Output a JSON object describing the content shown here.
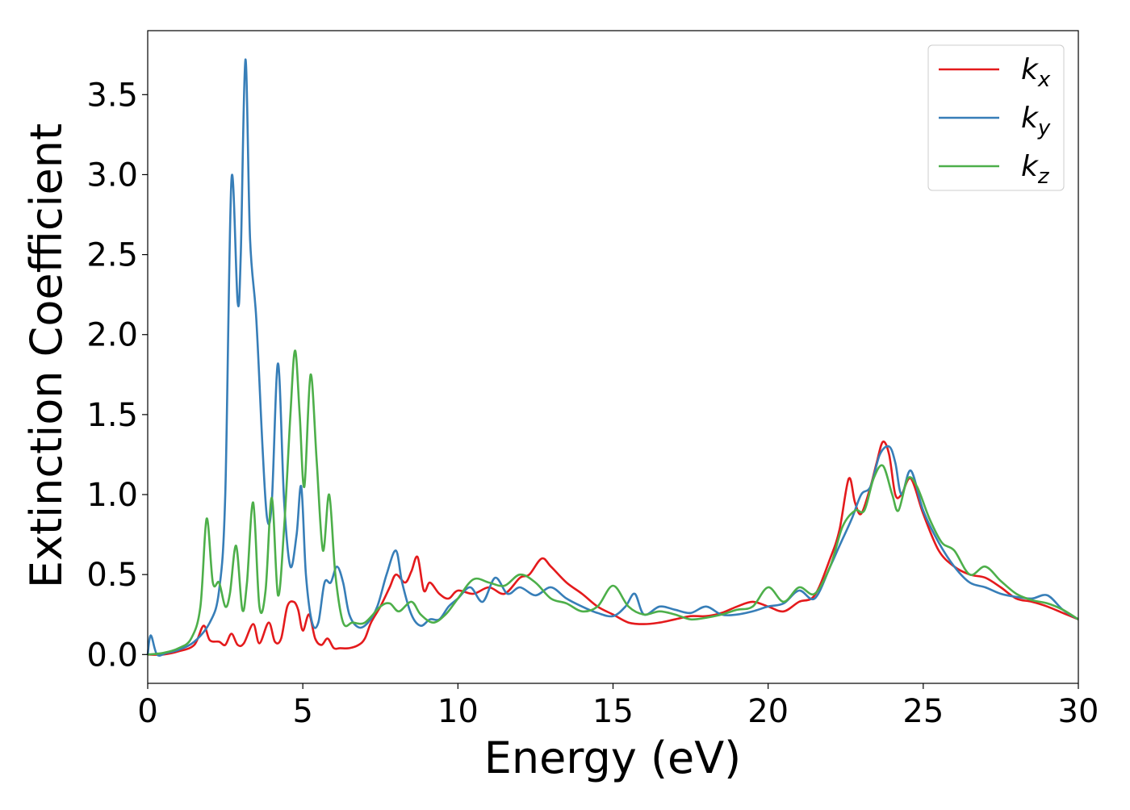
{
  "chart_data": {
    "type": "line",
    "title": "",
    "xlabel": "Energy (eV)",
    "ylabel": "Extinction Coefficient",
    "xlim": [
      0,
      30
    ],
    "ylim": [
      -0.18,
      3.9
    ],
    "x_ticks": [
      0,
      5,
      10,
      15,
      20,
      25,
      30
    ],
    "x_tick_labels": [
      "0",
      "5",
      "10",
      "15",
      "20",
      "25",
      "30"
    ],
    "y_ticks": [
      0.0,
      0.5,
      1.0,
      1.5,
      2.0,
      2.5,
      3.0,
      3.5
    ],
    "y_tick_labels": [
      "0.0",
      "0.5",
      "1.0",
      "1.5",
      "2.0",
      "2.5",
      "3.0",
      "3.5"
    ],
    "grid": false,
    "legend_position": "top-right",
    "series": [
      {
        "name": "k_x",
        "legend_main": "k",
        "legend_sub": "x",
        "color": "#e41a1c",
        "x": [
          0,
          0.5,
          1.0,
          1.5,
          1.8,
          2.0,
          2.3,
          2.5,
          2.7,
          2.9,
          3.1,
          3.4,
          3.6,
          3.9,
          4.1,
          4.3,
          4.5,
          4.7,
          4.85,
          5.0,
          5.2,
          5.4,
          5.6,
          5.8,
          6.0,
          6.2,
          6.5,
          6.8,
          7.0,
          7.2,
          7.5,
          7.8,
          8.0,
          8.3,
          8.5,
          8.7,
          8.9,
          9.1,
          9.4,
          9.7,
          10.0,
          10.5,
          11.0,
          11.5,
          12.0,
          12.3,
          12.7,
          13.0,
          13.5,
          14.0,
          14.5,
          15.0,
          15.5,
          16.0,
          16.5,
          17.0,
          17.5,
          18.0,
          18.5,
          19.0,
          19.5,
          20.0,
          20.5,
          21.0,
          21.5,
          22.0,
          22.3,
          22.6,
          22.8,
          23.0,
          23.3,
          23.5,
          23.7,
          23.9,
          24.1,
          24.3,
          24.6,
          25.0,
          25.5,
          26.0,
          26.5,
          27.0,
          27.5,
          28.0,
          28.5,
          29.0,
          29.5,
          30.0
        ],
        "y": [
          0.0,
          0.0,
          0.02,
          0.06,
          0.18,
          0.09,
          0.08,
          0.06,
          0.13,
          0.06,
          0.07,
          0.19,
          0.07,
          0.2,
          0.08,
          0.1,
          0.3,
          0.33,
          0.28,
          0.15,
          0.25,
          0.1,
          0.06,
          0.1,
          0.04,
          0.04,
          0.04,
          0.06,
          0.1,
          0.2,
          0.3,
          0.42,
          0.5,
          0.45,
          0.52,
          0.61,
          0.4,
          0.45,
          0.38,
          0.35,
          0.4,
          0.38,
          0.42,
          0.38,
          0.48,
          0.5,
          0.6,
          0.55,
          0.45,
          0.38,
          0.3,
          0.25,
          0.2,
          0.19,
          0.2,
          0.22,
          0.24,
          0.24,
          0.26,
          0.3,
          0.33,
          0.3,
          0.27,
          0.33,
          0.37,
          0.6,
          0.78,
          1.1,
          0.95,
          0.88,
          1.05,
          1.2,
          1.33,
          1.25,
          1.0,
          1.0,
          1.1,
          0.88,
          0.65,
          0.55,
          0.5,
          0.48,
          0.42,
          0.35,
          0.33,
          0.3,
          0.26,
          0.22
        ]
      },
      {
        "name": "k_y",
        "legend_main": "k",
        "legend_sub": "y",
        "color": "#377eb8",
        "x": [
          0,
          0.1,
          0.3,
          0.6,
          1.0,
          1.5,
          2.0,
          2.3,
          2.5,
          2.7,
          2.9,
          3.0,
          3.15,
          3.3,
          3.5,
          3.7,
          3.85,
          4.0,
          4.2,
          4.4,
          4.6,
          4.8,
          4.95,
          5.1,
          5.3,
          5.5,
          5.7,
          5.9,
          6.1,
          6.3,
          6.5,
          6.8,
          7.1,
          7.4,
          7.7,
          8.0,
          8.2,
          8.5,
          8.8,
          9.1,
          9.4,
          9.7,
          10.0,
          10.4,
          10.8,
          11.2,
          11.6,
          12.0,
          12.5,
          13.0,
          13.5,
          14.0,
          14.5,
          15.0,
          15.4,
          15.7,
          16.0,
          16.5,
          17.0,
          17.5,
          18.0,
          18.5,
          19.0,
          19.5,
          20.0,
          20.5,
          21.0,
          21.5,
          22.0,
          22.3,
          22.7,
          23.0,
          23.3,
          23.6,
          23.9,
          24.1,
          24.3,
          24.6,
          25.0,
          25.5,
          26.0,
          26.5,
          27.0,
          27.5,
          28.0,
          28.5,
          29.0,
          29.5,
          30.0
        ],
        "y": [
          0.0,
          0.12,
          0.0,
          0.01,
          0.03,
          0.08,
          0.2,
          0.4,
          1.0,
          2.97,
          2.2,
          2.5,
          3.72,
          2.6,
          2.1,
          1.3,
          0.85,
          0.95,
          1.82,
          0.95,
          0.55,
          0.75,
          1.05,
          0.5,
          0.2,
          0.2,
          0.45,
          0.45,
          0.55,
          0.45,
          0.25,
          0.17,
          0.2,
          0.3,
          0.5,
          0.65,
          0.45,
          0.25,
          0.18,
          0.22,
          0.22,
          0.3,
          0.35,
          0.42,
          0.33,
          0.48,
          0.38,
          0.42,
          0.37,
          0.42,
          0.35,
          0.3,
          0.26,
          0.24,
          0.3,
          0.38,
          0.25,
          0.3,
          0.28,
          0.26,
          0.3,
          0.25,
          0.25,
          0.27,
          0.3,
          0.32,
          0.4,
          0.35,
          0.55,
          0.68,
          0.85,
          1.0,
          1.05,
          1.25,
          1.3,
          1.2,
          1.0,
          1.15,
          0.9,
          0.7,
          0.55,
          0.45,
          0.42,
          0.38,
          0.36,
          0.35,
          0.37,
          0.28,
          0.22
        ]
      },
      {
        "name": "k_z",
        "legend_main": "k",
        "legend_sub": "z",
        "color": "#4daf4a",
        "x": [
          0,
          0.5,
          1.0,
          1.4,
          1.7,
          1.9,
          2.1,
          2.3,
          2.5,
          2.65,
          2.85,
          3.05,
          3.2,
          3.4,
          3.6,
          3.8,
          4.0,
          4.2,
          4.4,
          4.6,
          4.75,
          4.9,
          5.05,
          5.25,
          5.45,
          5.65,
          5.85,
          6.05,
          6.3,
          6.6,
          7.0,
          7.5,
          7.8,
          8.1,
          8.5,
          8.8,
          9.2,
          9.6,
          10.0,
          10.5,
          11.0,
          11.5,
          12.0,
          12.5,
          13.0,
          13.5,
          14.0,
          14.5,
          15.0,
          15.5,
          16.0,
          16.5,
          17.0,
          17.5,
          18.0,
          18.5,
          19.0,
          19.5,
          20.0,
          20.5,
          21.0,
          21.5,
          22.0,
          22.4,
          22.8,
          23.1,
          23.4,
          23.7,
          24.0,
          24.2,
          24.5,
          24.8,
          25.2,
          25.6,
          26.0,
          26.5,
          27.0,
          27.5,
          28.0,
          28.5,
          29.0,
          29.5,
          30.0
        ],
        "y": [
          0.0,
          0.01,
          0.04,
          0.1,
          0.3,
          0.85,
          0.45,
          0.45,
          0.3,
          0.38,
          0.68,
          0.28,
          0.45,
          0.95,
          0.3,
          0.4,
          0.98,
          0.37,
          0.8,
          1.5,
          1.9,
          1.5,
          1.05,
          1.75,
          1.2,
          0.65,
          1.0,
          0.5,
          0.2,
          0.2,
          0.2,
          0.3,
          0.32,
          0.27,
          0.33,
          0.25,
          0.2,
          0.25,
          0.35,
          0.47,
          0.45,
          0.43,
          0.5,
          0.45,
          0.35,
          0.32,
          0.27,
          0.3,
          0.43,
          0.3,
          0.25,
          0.27,
          0.25,
          0.22,
          0.23,
          0.25,
          0.28,
          0.3,
          0.42,
          0.33,
          0.42,
          0.38,
          0.55,
          0.8,
          0.9,
          0.9,
          1.1,
          1.18,
          1.0,
          0.9,
          1.1,
          1.05,
          0.85,
          0.7,
          0.65,
          0.5,
          0.55,
          0.46,
          0.38,
          0.34,
          0.32,
          0.28,
          0.22
        ]
      }
    ]
  }
}
